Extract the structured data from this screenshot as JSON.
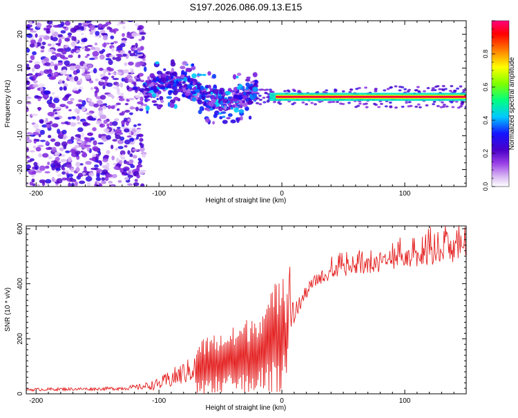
{
  "title": "S197.2026.086.09.13.E15",
  "chart_data": [
    {
      "type": "heatmap",
      "title": "S197.2026.086.09.13.E15",
      "xlabel": "Height of straight line (km)",
      "ylabel": "Frequency (Hz)",
      "xlim": [
        -208,
        150
      ],
      "ylim": [
        -25,
        24
      ],
      "xticks": [
        -200,
        -100,
        0,
        100
      ],
      "yticks": [
        -20,
        -10,
        0,
        10,
        20
      ],
      "colorbar": {
        "label": "Normalized spectral amplitude",
        "range": [
          0,
          1
        ],
        "ticks": [
          0.0,
          0.2,
          0.4,
          0.6,
          0.8
        ],
        "colors": [
          "#ffffff",
          "#d7b6f2",
          "#8a2be2",
          "#4b00c8",
          "#1010ff",
          "#00c8ff",
          "#00ff80",
          "#7fff00",
          "#ffff00",
          "#ff8000",
          "#ff0000",
          "#ff0080"
        ]
      },
      "features": [
        {
          "label": "diffuse noise",
          "x_range": [
            -208,
            -112
          ],
          "y_range": [
            -25,
            24
          ],
          "amplitude": 0.1
        },
        {
          "label": "scattered signal",
          "x_range": [
            -112,
            -20
          ],
          "y_center": 3,
          "y_spread": 6,
          "amplitude": 0.45
        },
        {
          "label": "steady tone",
          "x_range": [
            -20,
            150
          ],
          "y_center": 1.5,
          "amplitude": 0.95
        }
      ]
    },
    {
      "type": "line",
      "xlabel": "Height of straight line (km)",
      "ylabel": "SNR (10 * v/v)",
      "xlim": [
        -208,
        150
      ],
      "ylim": [
        0,
        610
      ],
      "xticks": [
        -200,
        -100,
        0,
        100
      ],
      "yticks": [
        0,
        200,
        400,
        600
      ],
      "series": [
        {
          "name": "SNR",
          "color": "#e41e1e",
          "x": [
            -208,
            -180,
            -150,
            -130,
            -115,
            -100,
            -90,
            -80,
            -70,
            -60,
            -50,
            -40,
            -30,
            -20,
            -10,
            -5,
            0,
            5,
            10,
            15,
            20,
            25,
            30,
            40,
            50,
            60,
            70,
            80,
            90,
            100,
            110,
            120,
            130,
            140,
            150
          ],
          "y": [
            15,
            17,
            18,
            20,
            25,
            35,
            55,
            75,
            95,
            110,
            115,
            125,
            140,
            160,
            190,
            215,
            245,
            265,
            290,
            330,
            370,
            400,
            420,
            440,
            450,
            460,
            465,
            470,
            475,
            490,
            498,
            505,
            510,
            520,
            525
          ],
          "noise_amplitude": [
            8,
            8,
            8,
            10,
            15,
            30,
            50,
            60,
            70,
            80,
            85,
            90,
            100,
            110,
            130,
            150,
            170,
            120,
            70,
            40,
            35,
            35,
            35,
            35,
            35,
            35,
            40,
            40,
            45,
            45,
            50,
            55,
            55,
            60,
            60
          ]
        }
      ]
    }
  ]
}
